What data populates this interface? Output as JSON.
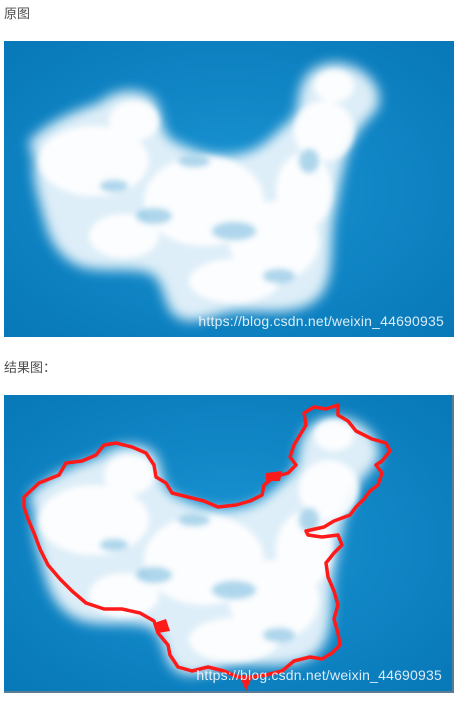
{
  "captions": {
    "original": "原图",
    "result": "结果图："
  },
  "watermark": "https://blog.csdn.net/weixin_44690935",
  "colors": {
    "sky": "#0a84c6",
    "cloud": "#ffffff",
    "contour": "#ff1a1a"
  },
  "figures": {
    "original": {
      "image": "cloud-map-china"
    },
    "result": {
      "image": "cloud-map-china-with-contour"
    }
  }
}
